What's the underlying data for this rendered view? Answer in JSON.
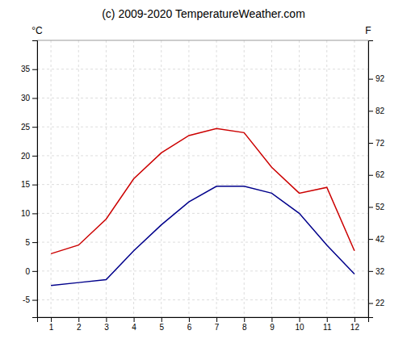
{
  "chart_data": {
    "type": "line",
    "title": "(c) 2009-2020 TemperatureWeather.com",
    "x": [
      1,
      2,
      3,
      4,
      5,
      6,
      7,
      8,
      9,
      10,
      11,
      12
    ],
    "xlim": [
      0.5,
      12.5
    ],
    "xticks": [
      1,
      2,
      3,
      4,
      5,
      6,
      7,
      8,
      9,
      10,
      11,
      12
    ],
    "ylabel": "°C",
    "y2label": "F",
    "ylim": [
      -8,
      40
    ],
    "yticks": [
      -5,
      0,
      5,
      10,
      15,
      20,
      25,
      30,
      35
    ],
    "y2lim": [
      17.6,
      104
    ],
    "y2ticks": [
      22,
      32,
      42,
      52,
      62,
      72,
      82,
      92
    ],
    "grid": true,
    "series": [
      {
        "color": "#cc0000",
        "values": [
          3.0,
          4.5,
          9.0,
          16.0,
          20.5,
          23.5,
          24.7,
          24.0,
          18.0,
          13.5,
          14.5,
          3.5
        ]
      },
      {
        "color": "#00008b",
        "values": [
          -2.5,
          -2.0,
          -1.5,
          3.5,
          8.0,
          12.0,
          14.7,
          14.7,
          13.5,
          10.0,
          4.5,
          -0.5
        ]
      }
    ]
  }
}
